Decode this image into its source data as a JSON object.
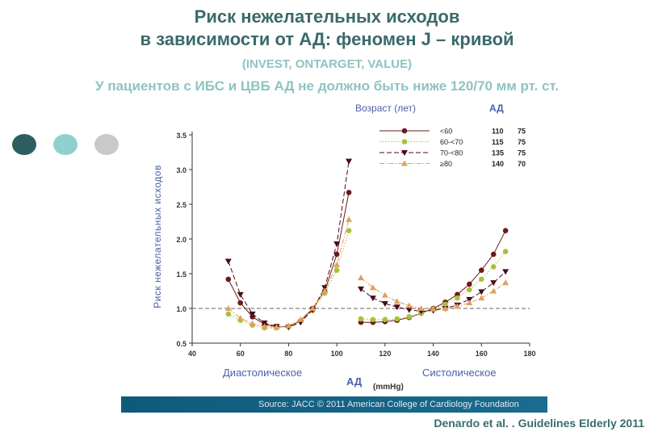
{
  "slide": {
    "title_line1": "Риск нежелательных исходов",
    "title_line2": "в зависимости от АД: феномен J – кривой",
    "studies": "(INVEST, ONTARGET, VALUE)",
    "note": "У пациентов с ИБС и ЦВБ АД не должно быть ниже 120/70 мм рт. ст.",
    "source": "Source: JACC © 2011 American College of Cardiology Foundation",
    "citation": "Denardo et al. . Guidelines Elderly 2011"
  },
  "colors": {
    "title": "#3a6a6b",
    "subtitle": "#8fc3c3",
    "dots": [
      "#2f5e60",
      "#8fd0cf",
      "#c9c9c9"
    ],
    "axis_label": "#4a5fa8"
  },
  "chart_data": {
    "type": "line",
    "ylabel": "Риск нежелательных исходов",
    "xlabel": "(mmHg)",
    "xlabel_main": "АД",
    "diastolic_label": "Диастолическое",
    "systolic_label": "Систолическое",
    "xlim": [
      40,
      180
    ],
    "ylim": [
      0.5,
      3.5
    ],
    "xticks": [
      40,
      60,
      80,
      100,
      120,
      140,
      160,
      180
    ],
    "yticks": [
      0.5,
      1.0,
      1.5,
      2.0,
      2.5,
      3.0,
      3.5
    ],
    "ytick_labels": [
      "0.5",
      "1.0",
      "1.5",
      "2.0",
      "2.5",
      "3.0",
      "3.5"
    ],
    "reference_line": 1.0,
    "legend": {
      "title": "Возраст (лет)",
      "bp_header": "АД",
      "placement": "top-right"
    },
    "series": [
      {
        "name": "<60",
        "bp_sys": "110",
        "bp_dia": "75",
        "color": "#6b1a1a",
        "marker": "circle",
        "dash": "solid",
        "diastolic": {
          "x": [
            55,
            60,
            65,
            70,
            75,
            80,
            85,
            90,
            95,
            100,
            105
          ],
          "y": [
            1.42,
            1.08,
            0.88,
            0.77,
            0.74,
            0.74,
            0.82,
            1.0,
            1.25,
            1.78,
            2.67
          ]
        },
        "systolic": {
          "x": [
            110,
            115,
            120,
            125,
            130,
            135,
            140,
            145,
            150,
            155,
            160,
            165,
            170
          ],
          "y": [
            0.8,
            0.8,
            0.81,
            0.83,
            0.87,
            0.93,
            1.0,
            1.09,
            1.2,
            1.35,
            1.55,
            1.78,
            2.12
          ]
        }
      },
      {
        "name": "60-<70",
        "bp_sys": "115",
        "bp_dia": "75",
        "color": "#a8c23a",
        "marker": "circle",
        "dash": "dotted",
        "diastolic": {
          "x": [
            55,
            60,
            65,
            70,
            75,
            80,
            85,
            90,
            95,
            100,
            105
          ],
          "y": [
            0.92,
            0.83,
            0.76,
            0.72,
            0.72,
            0.74,
            0.82,
            0.97,
            1.22,
            1.55,
            2.12
          ]
        },
        "systolic": {
          "x": [
            110,
            115,
            120,
            125,
            130,
            135,
            140,
            145,
            150,
            155,
            160,
            165,
            170
          ],
          "y": [
            0.85,
            0.84,
            0.84,
            0.85,
            0.88,
            0.93,
            0.99,
            1.06,
            1.15,
            1.27,
            1.42,
            1.6,
            1.82
          ]
        }
      },
      {
        "name": "70-<80",
        "bp_sys": "135",
        "bp_dia": "75",
        "color": "#4a0a1a",
        "marker": "triangle-down",
        "dash": "dashed",
        "diastolic": {
          "x": [
            55,
            60,
            65,
            70,
            75,
            80,
            85,
            90,
            95,
            100,
            105
          ],
          "y": [
            1.68,
            1.2,
            0.92,
            0.79,
            0.74,
            0.73,
            0.8,
            0.98,
            1.3,
            1.93,
            3.12
          ]
        },
        "systolic": {
          "x": [
            110,
            115,
            120,
            125,
            130,
            135,
            140,
            145,
            150,
            155,
            160,
            165,
            170
          ],
          "y": [
            1.28,
            1.15,
            1.07,
            1.02,
            0.98,
            0.96,
            0.97,
            1.0,
            1.05,
            1.13,
            1.24,
            1.37,
            1.53
          ]
        }
      },
      {
        "name": "≥80",
        "bp_sys": "140",
        "bp_dia": "70",
        "color": "#e0a060",
        "marker": "triangle-up",
        "dash": "dashdot",
        "diastolic": {
          "x": [
            55,
            60,
            65,
            70,
            75,
            80,
            85,
            90,
            95,
            100,
            105
          ],
          "y": [
            1.0,
            0.86,
            0.78,
            0.74,
            0.73,
            0.75,
            0.84,
            1.0,
            1.25,
            1.63,
            2.28
          ]
        },
        "systolic": {
          "x": [
            110,
            115,
            120,
            125,
            130,
            135,
            140,
            145,
            150,
            155,
            160,
            165,
            170
          ],
          "y": [
            1.44,
            1.3,
            1.19,
            1.1,
            1.04,
            1.0,
            0.99,
            1.0,
            1.03,
            1.08,
            1.15,
            1.25,
            1.37
          ]
        }
      }
    ]
  }
}
